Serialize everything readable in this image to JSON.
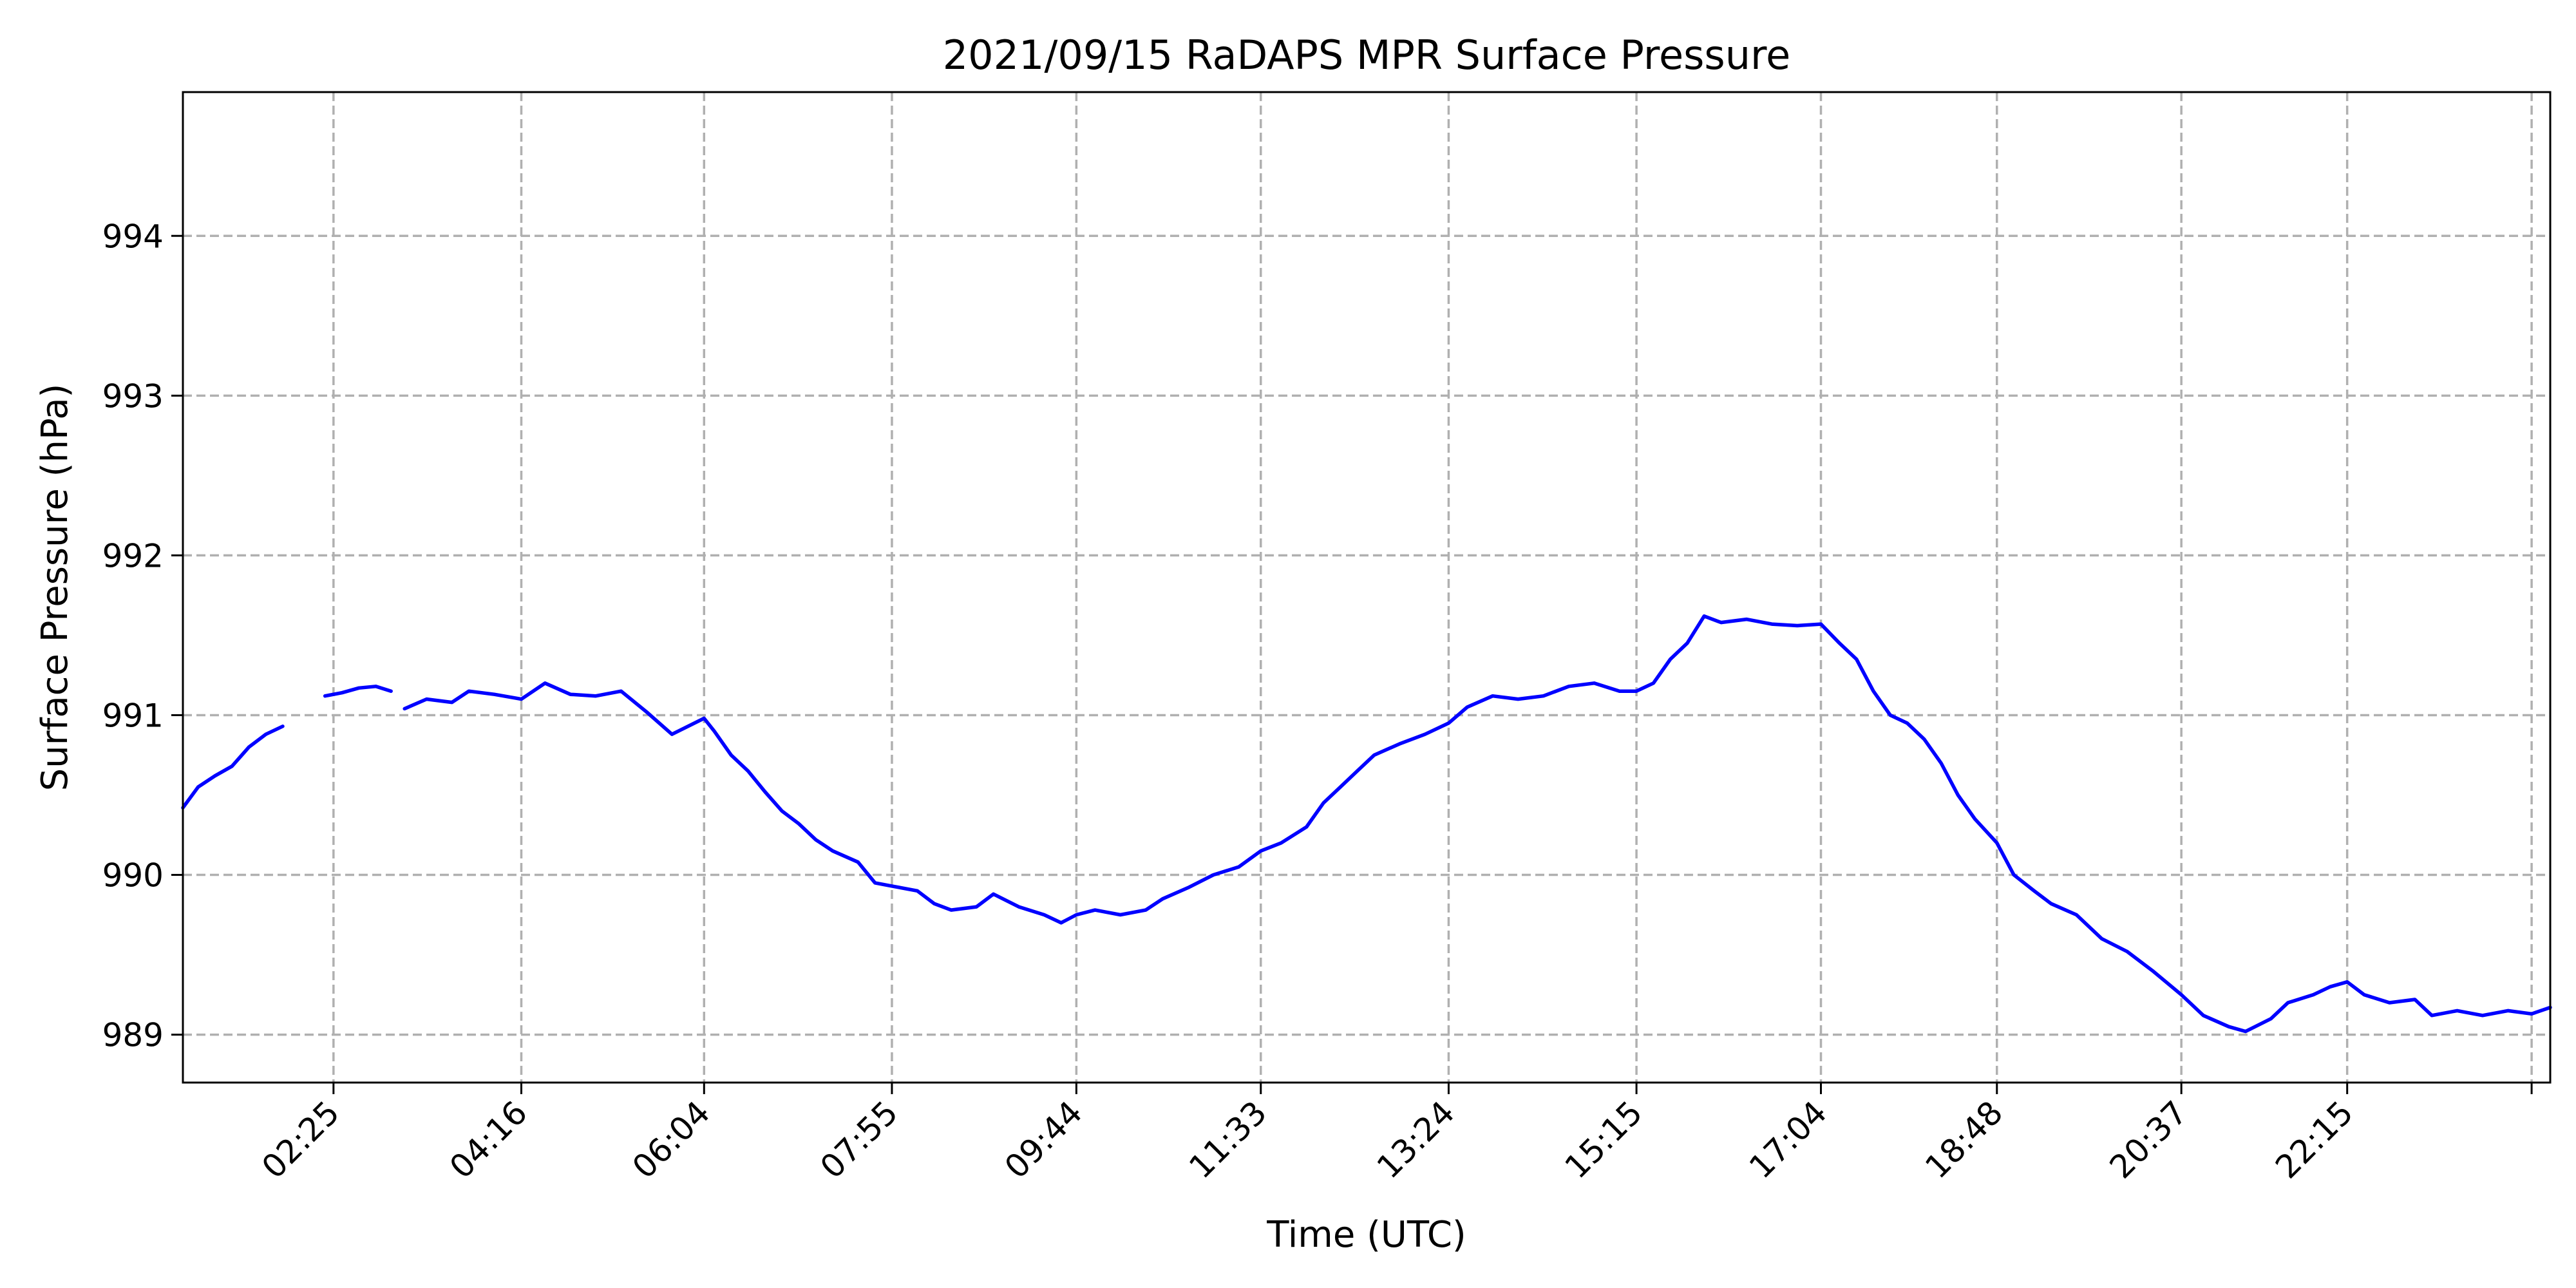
{
  "chart_data": {
    "type": "line",
    "title": "2021/09/15 RaDAPS MPR Surface Pressure",
    "xlabel": "Time (UTC)",
    "ylabel": "Surface Pressure (hPa)",
    "x_unit": "time of day (UTC)",
    "xlim": [
      "00:56",
      "24:15"
    ],
    "ylim": [
      988.7,
      994.9
    ],
    "grid": true,
    "legend": "none",
    "x_ticks": [
      "02:25",
      "04:16",
      "06:04",
      "07:55",
      "09:44",
      "11:33",
      "13:24",
      "15:15",
      "17:04",
      "18:48",
      "20:37",
      "22:15",
      ""
    ],
    "x_tick_times": [
      "02:25",
      "04:16",
      "06:04",
      "07:55",
      "09:44",
      "11:33",
      "13:24",
      "15:15",
      "17:04",
      "18:48",
      "20:37",
      "22:15",
      "24:04"
    ],
    "y_ticks": [
      989,
      990,
      991,
      992,
      993,
      994
    ],
    "series": [
      {
        "color": "#0000ff",
        "segments": [
          [
            [
              "00:56",
              990.42
            ],
            [
              "01:05",
              990.55
            ],
            [
              "01:15",
              990.62
            ],
            [
              "01:25",
              990.68
            ],
            [
              "01:35",
              990.8
            ],
            [
              "01:45",
              990.88
            ],
            [
              "01:55",
              990.93
            ]
          ],
          [
            [
              "02:20",
              991.12
            ],
            [
              "02:30",
              991.14
            ],
            [
              "02:40",
              991.17
            ],
            [
              "02:50",
              991.18
            ],
            [
              "02:59",
              991.15
            ]
          ],
          [
            [
              "03:07",
              991.04
            ],
            [
              "03:20",
              991.1
            ],
            [
              "03:35",
              991.08
            ],
            [
              "03:45",
              991.15
            ],
            [
              "04:00",
              991.13
            ],
            [
              "04:16",
              991.1
            ],
            [
              "04:30",
              991.2
            ],
            [
              "04:45",
              991.13
            ],
            [
              "05:00",
              991.12
            ],
            [
              "05:15",
              991.15
            ],
            [
              "05:30",
              991.02
            ],
            [
              "05:45",
              990.88
            ],
            [
              "06:04",
              990.98
            ],
            [
              "06:10",
              990.9
            ],
            [
              "06:20",
              990.75
            ],
            [
              "06:30",
              990.65
            ],
            [
              "06:40",
              990.52
            ],
            [
              "06:50",
              990.4
            ],
            [
              "07:00",
              990.32
            ],
            [
              "07:10",
              990.22
            ],
            [
              "07:20",
              990.15
            ],
            [
              "07:35",
              990.08
            ],
            [
              "07:45",
              989.95
            ],
            [
              "07:55",
              989.93
            ],
            [
              "08:10",
              989.9
            ],
            [
              "08:20",
              989.82
            ],
            [
              "08:30",
              989.78
            ],
            [
              "08:45",
              989.8
            ],
            [
              "08:55",
              989.88
            ],
            [
              "09:10",
              989.8
            ],
            [
              "09:25",
              989.75
            ],
            [
              "09:35",
              989.7
            ],
            [
              "09:44",
              989.75
            ],
            [
              "09:55",
              989.78
            ],
            [
              "10:10",
              989.75
            ],
            [
              "10:25",
              989.78
            ],
            [
              "10:35",
              989.85
            ],
            [
              "10:50",
              989.92
            ],
            [
              "11:05",
              990.0
            ],
            [
              "11:20",
              990.05
            ],
            [
              "11:33",
              990.15
            ],
            [
              "11:45",
              990.2
            ],
            [
              "12:00",
              990.3
            ],
            [
              "12:10",
              990.45
            ],
            [
              "12:20",
              990.55
            ],
            [
              "12:30",
              990.65
            ],
            [
              "12:40",
              990.75
            ],
            [
              "12:55",
              990.82
            ],
            [
              "13:10",
              990.88
            ],
            [
              "13:24",
              990.95
            ],
            [
              "13:35",
              991.05
            ],
            [
              "13:50",
              991.12
            ],
            [
              "14:05",
              991.1
            ],
            [
              "14:20",
              991.12
            ],
            [
              "14:35",
              991.18
            ],
            [
              "14:50",
              991.2
            ],
            [
              "15:05",
              991.15
            ],
            [
              "15:15",
              991.15
            ],
            [
              "15:25",
              991.2
            ],
            [
              "15:35",
              991.35
            ],
            [
              "15:45",
              991.45
            ],
            [
              "15:55",
              991.62
            ],
            [
              "16:05",
              991.58
            ],
            [
              "16:20",
              991.6
            ],
            [
              "16:35",
              991.57
            ],
            [
              "16:50",
              991.56
            ],
            [
              "17:04",
              991.57
            ],
            [
              "17:15",
              991.45
            ],
            [
              "17:25",
              991.35
            ],
            [
              "17:35",
              991.15
            ],
            [
              "17:45",
              991.0
            ],
            [
              "17:55",
              990.95
            ],
            [
              "18:05",
              990.85
            ],
            [
              "18:15",
              990.7
            ],
            [
              "18:25",
              990.5
            ],
            [
              "18:35",
              990.35
            ],
            [
              "18:48",
              990.2
            ],
            [
              "18:58",
              990.0
            ],
            [
              "19:10",
              989.9
            ],
            [
              "19:20",
              989.82
            ],
            [
              "19:35",
              989.75
            ],
            [
              "19:50",
              989.6
            ],
            [
              "20:05",
              989.52
            ],
            [
              "20:20",
              989.4
            ],
            [
              "20:37",
              989.25
            ],
            [
              "20:50",
              989.12
            ],
            [
              "21:05",
              989.05
            ],
            [
              "21:15",
              989.02
            ],
            [
              "21:30",
              989.1
            ],
            [
              "21:40",
              989.2
            ],
            [
              "21:55",
              989.25
            ],
            [
              "22:05",
              989.3
            ],
            [
              "22:15",
              989.33
            ],
            [
              "22:25",
              989.25
            ],
            [
              "22:40",
              989.2
            ],
            [
              "22:55",
              989.22
            ],
            [
              "23:05",
              989.12
            ],
            [
              "23:20",
              989.15
            ],
            [
              "23:35",
              989.12
            ],
            [
              "23:50",
              989.15
            ],
            [
              "24:04",
              989.13
            ],
            [
              "24:15",
              989.17
            ]
          ]
        ]
      }
    ]
  }
}
